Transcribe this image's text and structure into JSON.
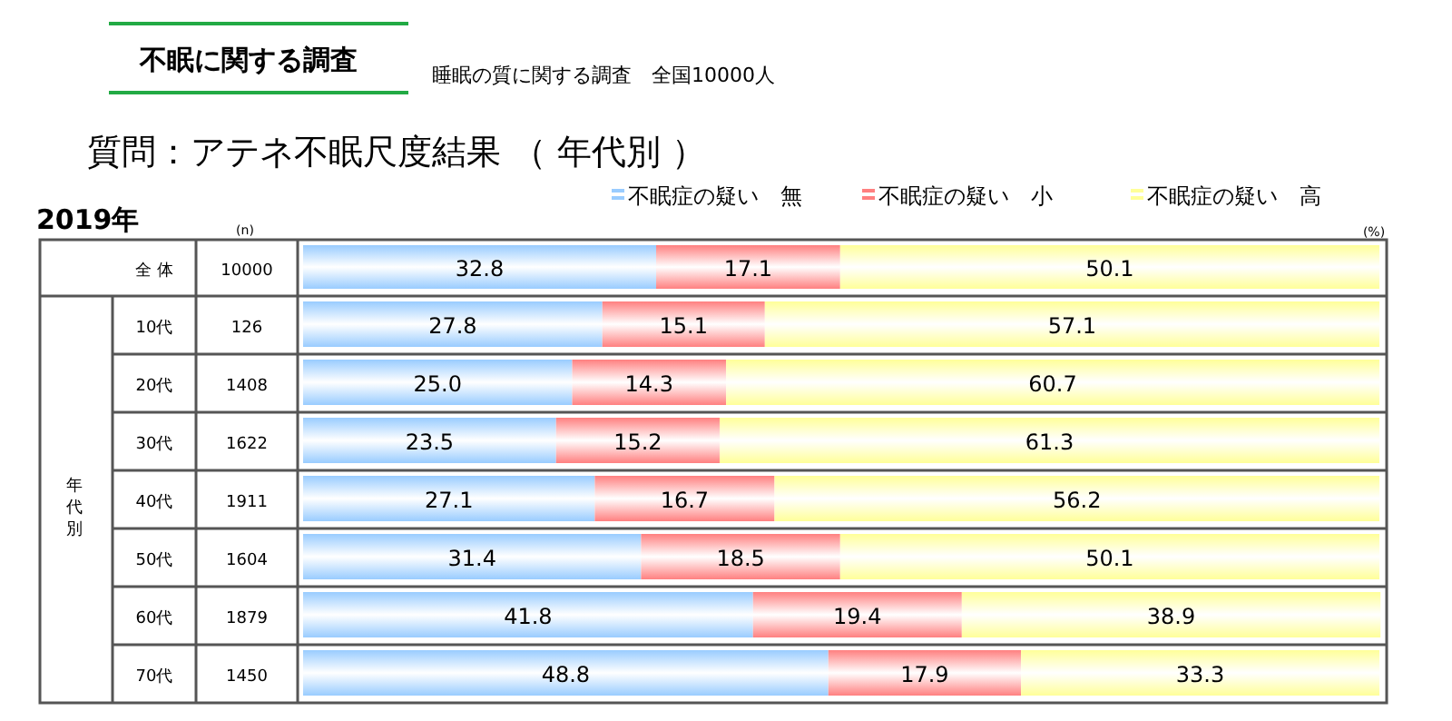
{
  "chart_data": {
    "type": "bar",
    "orientation": "horizontal",
    "stacked": true,
    "legend": "top right",
    "xlim": [
      0,
      100
    ],
    "title": "不眠に関する調査",
    "subtitle": "睡眠の質に関する調査　全国10000人",
    "annotations": [
      "質問：アテネ不眠尺度結果 （ 年代別 ）",
      "2019年",
      "(n)",
      "(%)",
      "年代別"
    ],
    "categories": [
      "全 体",
      "10代",
      "20代",
      "30代",
      "40代",
      "50代",
      "60代",
      "70代"
    ],
    "y2_categories": [
      "10000",
      "126",
      "1408",
      "1622",
      "1911",
      "1604",
      "1879",
      "1450"
    ],
    "series": [
      {
        "name": "不眠症の疑い　無",
        "color": "#99ccff",
        "values": [
          32.8,
          27.8,
          25.0,
          23.5,
          27.1,
          31.4,
          41.8,
          48.8
        ],
        "value_labels": [
          "32.8",
          "27.8",
          "25.0",
          "23.5",
          "27.1",
          "31.4",
          "41.8",
          "48.8"
        ]
      },
      {
        "name": "不眠症の疑い　小",
        "color": "#ff8080",
        "values": [
          17.1,
          15.1,
          14.3,
          15.2,
          16.7,
          18.5,
          19.4,
          17.9
        ],
        "value_labels": [
          "17.1",
          "15.1",
          "14.3",
          "15.2",
          "16.7",
          "18.5",
          "19.4",
          "17.9"
        ]
      },
      {
        "name": "不眠症の疑い　高",
        "color": "#ffff99",
        "values": [
          50.1,
          57.1,
          60.7,
          61.3,
          56.2,
          50.1,
          38.9,
          33.3
        ],
        "value_labels": [
          "50.1",
          "57.1",
          "60.7",
          "61.3",
          "56.2",
          "50.1",
          "38.9",
          "33.3"
        ]
      }
    ]
  }
}
